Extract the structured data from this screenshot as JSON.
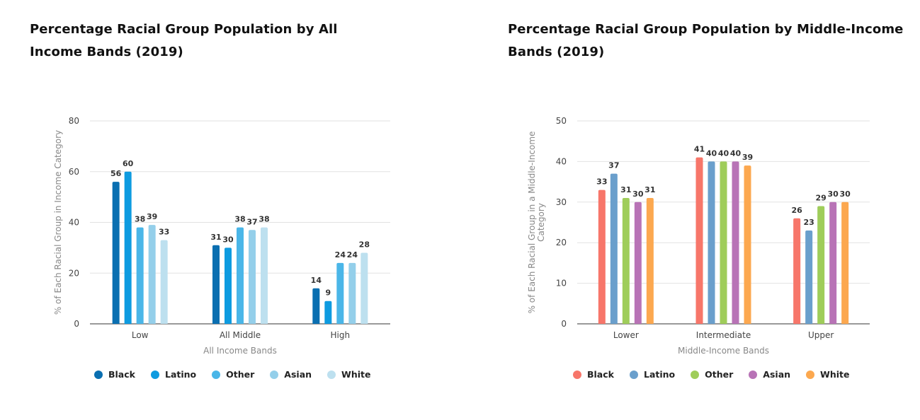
{
  "chart_data": [
    {
      "type": "bar",
      "title": "Percentage Racial Group Population by All Income Bands (2019)",
      "xlabel": "All Income Bands",
      "ylabel": "% of Each Racial Group in Income Category",
      "ylim": [
        0,
        80
      ],
      "yticks": [
        0,
        20,
        40,
        60,
        80
      ],
      "categories": [
        "Low",
        "All Middle",
        "High"
      ],
      "series": [
        {
          "name": "Black",
          "color": "#0a6fb1",
          "values": [
            56,
            31,
            14
          ]
        },
        {
          "name": "Latino",
          "color": "#0e9be0",
          "values": [
            60,
            30,
            9
          ]
        },
        {
          "name": "Other",
          "color": "#4ab6e8",
          "values": [
            38,
            38,
            24
          ]
        },
        {
          "name": "Asian",
          "color": "#94cfea",
          "values": [
            39,
            37,
            24
          ]
        },
        {
          "name": "White",
          "color": "#bde0ef",
          "values": [
            33,
            38,
            28
          ]
        }
      ],
      "grid": true,
      "legend": "bottom"
    },
    {
      "type": "bar",
      "title": "Percentage Racial Group Population by Middle-Income Bands (2019)",
      "xlabel": "Middle-Income Bands",
      "ylabel": "% of Each Racial Group in a Middle-Income Category",
      "ylim": [
        0,
        50
      ],
      "yticks": [
        0,
        10,
        20,
        30,
        40,
        50
      ],
      "categories": [
        "Lower",
        "Intermediate",
        "Upper"
      ],
      "series": [
        {
          "name": "Black",
          "color": "#f7766a",
          "values": [
            33,
            41,
            26
          ]
        },
        {
          "name": "Latino",
          "color": "#6a9fcc",
          "values": [
            37,
            40,
            23
          ]
        },
        {
          "name": "Other",
          "color": "#9fcd5a",
          "values": [
            31,
            40,
            29
          ]
        },
        {
          "name": "Asian",
          "color": "#b873b6",
          "values": [
            30,
            40,
            30
          ]
        },
        {
          "name": "White",
          "color": "#fca84f",
          "values": [
            31,
            39,
            30
          ]
        }
      ],
      "grid": true,
      "legend": "bottom"
    }
  ]
}
